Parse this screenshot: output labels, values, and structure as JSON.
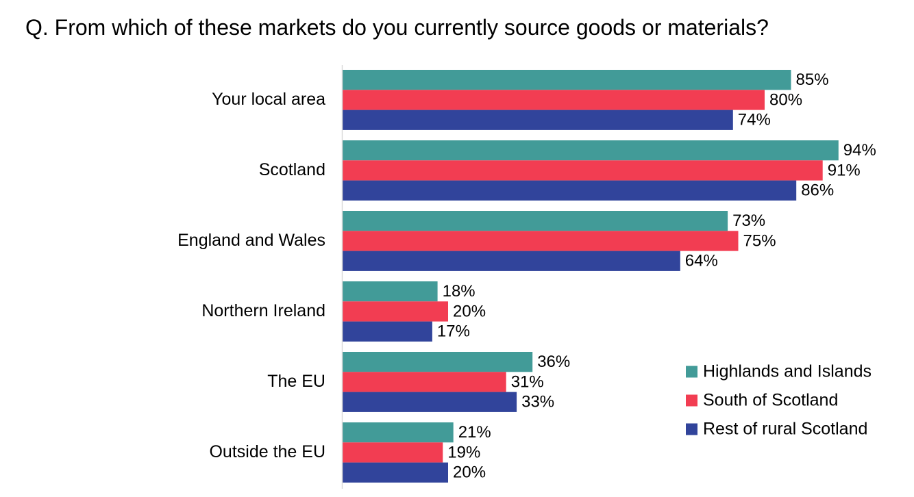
{
  "chart_data": {
    "type": "bar",
    "orientation": "horizontal",
    "title": "Q. From which of these markets do you currently source goods or materials?",
    "xlabel": "",
    "ylabel": "",
    "xlim": [
      0,
      100
    ],
    "grid": false,
    "legend_position": "bottom-right",
    "categories": [
      "Your local area",
      "Scotland",
      "England and Wales",
      "Northern Ireland",
      "The EU",
      "Outside the EU"
    ],
    "series": [
      {
        "name": "Highlands and Islands",
        "color": "#429b98",
        "values": [
          85,
          94,
          73,
          18,
          36,
          21
        ],
        "labels": [
          "85%",
          "94%",
          "73%",
          "18%",
          "36%",
          "21%"
        ]
      },
      {
        "name": "South of Scotland",
        "color": "#f23d52",
        "values": [
          80,
          91,
          75,
          20,
          31,
          19
        ],
        "labels": [
          "80%",
          "91%",
          "75%",
          "20%",
          "31%",
          "19%"
        ]
      },
      {
        "name": "Rest of rural Scotland",
        "color": "#31449b",
        "values": [
          74,
          86,
          64,
          17,
          33,
          20
        ],
        "labels": [
          "74%",
          "86%",
          "64%",
          "17%",
          "33%",
          "20%"
        ]
      }
    ]
  }
}
